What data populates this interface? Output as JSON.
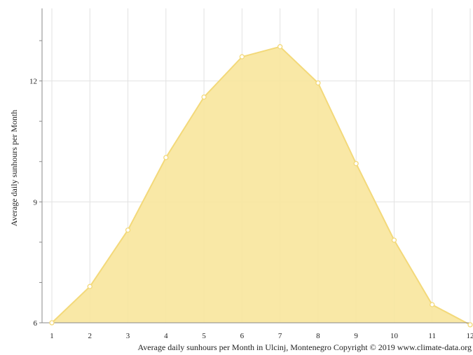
{
  "chart_data": {
    "type": "area",
    "title": "",
    "xlabel": "Average daily sunhours per Month in Ulcinj, Montenegro Copyright © 2019 www.climate-data.org",
    "ylabel": "Average daily sunhours per Month",
    "x": [
      1,
      2,
      3,
      4,
      5,
      6,
      7,
      8,
      9,
      10,
      11,
      12
    ],
    "x_tick_labels": [
      "1",
      "2",
      "3",
      "4",
      "5",
      "6",
      "7",
      "8",
      "9",
      "10",
      "11",
      "12"
    ],
    "y_ticks": [
      6,
      9,
      12
    ],
    "y_tick_labels": [
      "6",
      "9",
      "12"
    ],
    "ylim": [
      6,
      13.8
    ],
    "xlim": [
      1,
      12
    ],
    "grid": true,
    "legend": "none",
    "series": [
      {
        "values": [
          6.0,
          6.9,
          8.3,
          10.1,
          11.6,
          12.6,
          12.85,
          11.95,
          9.95,
          8.05,
          6.45,
          5.95
        ]
      }
    ],
    "colors": {
      "fill": "#f8e59c",
      "line": "#f3d97a",
      "marker_fill": "#ffffff",
      "grid": "#e2e2e2",
      "axis": "#888888"
    }
  }
}
